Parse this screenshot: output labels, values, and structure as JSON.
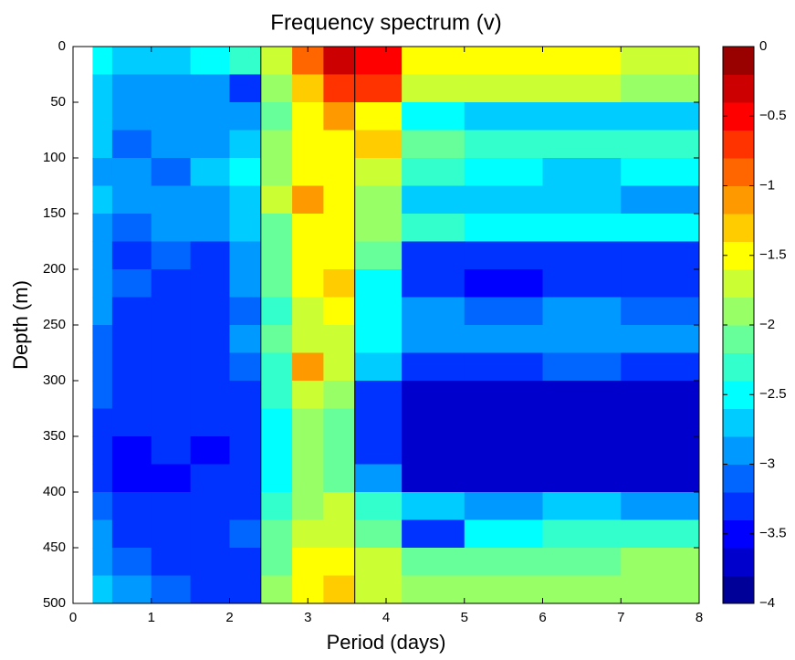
{
  "chart_data": {
    "type": "contour",
    "title": "Frequency spectrum (v)",
    "x_label": "Period (days)",
    "y_label": "Depth (m)",
    "colormap": "jet",
    "levels": 20,
    "x_edges": [
      0.25,
      0.5,
      1,
      1.5,
      2,
      2.4,
      2.8,
      3.2,
      3.6,
      4.2,
      5,
      6,
      7,
      8
    ],
    "y_edges": [
      0,
      25,
      50,
      75,
      100,
      125,
      150,
      175,
      200,
      225,
      250,
      275,
      300,
      325,
      350,
      375,
      400,
      425,
      450,
      475,
      500
    ],
    "z": [
      [
        -2.6,
        -2.8,
        -2.8,
        -2.6,
        -2.4,
        -1.8,
        -0.9,
        -0.4,
        -0.5,
        -1.6,
        -1.5,
        -1.6,
        -1.8
      ],
      [
        -2.7,
        -3.0,
        -2.9,
        -3.0,
        -3.2,
        -1.9,
        -1.4,
        -0.8,
        -0.7,
        -1.8,
        -1.7,
        -1.8,
        -2.0
      ],
      [
        -2.8,
        -3.0,
        -3.0,
        -2.9,
        -3.0,
        -2.1,
        -1.5,
        -1.1,
        -1.5,
        -2.6,
        -2.8,
        -2.7,
        -2.8
      ],
      [
        -2.8,
        -3.1,
        -2.9,
        -3.0,
        -2.8,
        -2.0,
        -1.6,
        -1.5,
        -1.3,
        -2.2,
        -2.3,
        -2.4,
        -2.4
      ],
      [
        -2.9,
        -3.0,
        -3.1,
        -2.8,
        -2.6,
        -2.0,
        -1.5,
        -1.6,
        -1.7,
        -2.4,
        -2.6,
        -2.7,
        -2.6
      ],
      [
        -2.8,
        -3.0,
        -3.0,
        -2.9,
        -2.7,
        -1.8,
        -1.1,
        -1.5,
        -1.9,
        -2.8,
        -2.7,
        -2.8,
        -2.9
      ],
      [
        -2.9,
        -3.1,
        -3.0,
        -3.0,
        -2.8,
        -2.1,
        -1.6,
        -1.5,
        -1.9,
        -2.4,
        -2.5,
        -2.6,
        -2.6
      ],
      [
        -2.9,
        -3.2,
        -3.1,
        -3.2,
        -2.9,
        -2.2,
        -1.6,
        -1.6,
        -2.2,
        -3.3,
        -3.2,
        -3.3,
        -3.3
      ],
      [
        -3.0,
        -3.1,
        -3.2,
        -3.2,
        -3.0,
        -2.2,
        -1.5,
        -1.3,
        -2.5,
        -3.4,
        -3.5,
        -3.4,
        -3.3
      ],
      [
        -3.0,
        -3.2,
        -3.2,
        -3.3,
        -3.1,
        -2.3,
        -1.7,
        -1.6,
        -2.6,
        -3.0,
        -3.1,
        -3.0,
        -3.1
      ],
      [
        -3.1,
        -3.3,
        -3.2,
        -3.2,
        -3.0,
        -2.2,
        -1.7,
        -1.7,
        -2.6,
        -2.9,
        -3.0,
        -2.9,
        -2.9
      ],
      [
        -3.1,
        -3.3,
        -3.3,
        -3.4,
        -3.1,
        -2.4,
        -1.2,
        -1.7,
        -2.8,
        -3.2,
        -3.2,
        -3.1,
        -3.2
      ],
      [
        -3.1,
        -3.4,
        -3.3,
        -3.3,
        -3.2,
        -2.4,
        -1.8,
        -2.0,
        -3.4,
        -3.7,
        -3.7,
        -3.6,
        -3.6
      ],
      [
        -3.2,
        -3.4,
        -3.4,
        -3.4,
        -3.2,
        -2.5,
        -2.0,
        -2.2,
        -3.4,
        -3.8,
        -3.8,
        -3.7,
        -3.7
      ],
      [
        -3.2,
        -3.5,
        -3.4,
        -3.5,
        -3.3,
        -2.5,
        -1.9,
        -2.1,
        -3.3,
        -3.6,
        -3.7,
        -3.6,
        -3.6
      ],
      [
        -3.2,
        -3.5,
        -3.5,
        -3.4,
        -3.3,
        -2.5,
        -2.0,
        -2.1,
        -3.0,
        -3.8,
        -3.8,
        -3.8,
        -3.7
      ],
      [
        -3.1,
        -3.4,
        -3.3,
        -3.4,
        -3.2,
        -2.3,
        -1.9,
        -1.8,
        -2.4,
        -2.8,
        -2.9,
        -2.8,
        -2.9
      ],
      [
        -3.0,
        -3.2,
        -3.3,
        -3.3,
        -3.1,
        -2.2,
        -1.8,
        -1.8,
        -2.2,
        -3.4,
        -2.6,
        -2.4,
        -2.3
      ],
      [
        -2.9,
        -3.1,
        -3.2,
        -3.3,
        -3.2,
        -2.1,
        -1.6,
        -1.5,
        -1.8,
        -2.2,
        -2.1,
        -2.1,
        -2.0
      ],
      [
        -2.8,
        -3.0,
        -3.1,
        -3.2,
        -3.3,
        -2.0,
        -1.5,
        -1.4,
        -1.8,
        -2.0,
        -2.0,
        -1.9,
        -1.9
      ]
    ],
    "vlines": [
      2.4,
      3.6
    ],
    "xlim": [
      0,
      8
    ],
    "xticks": [
      0,
      1,
      2,
      3,
      4,
      5,
      6,
      7,
      8
    ],
    "ylim": [
      500,
      0
    ],
    "yticks": [
      0,
      50,
      100,
      150,
      200,
      250,
      300,
      350,
      400,
      450,
      500
    ],
    "clim": [
      -4,
      0
    ],
    "cticks": [
      0,
      {
        "value": -0.5,
        "label": "−0.5"
      },
      {
        "value": -1,
        "label": "−1"
      },
      {
        "value": -1.5,
        "label": "−1.5"
      },
      {
        "value": -2,
        "label": "−2"
      },
      {
        "value": -2.5,
        "label": "−2.5"
      },
      {
        "value": -3,
        "label": "−3"
      },
      {
        "value": -3.5,
        "label": "−3.5"
      },
      {
        "value": -4,
        "label": "−4"
      }
    ]
  }
}
